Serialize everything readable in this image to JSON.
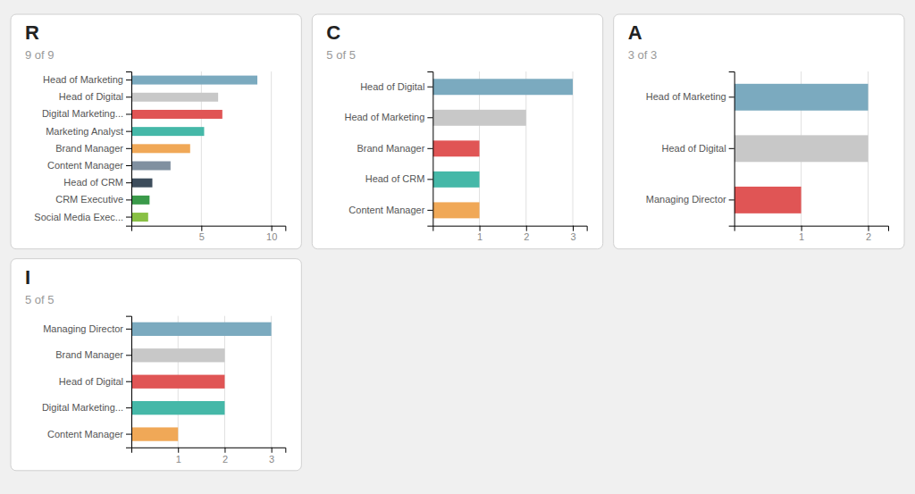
{
  "chart_data": [
    {
      "type": "bar",
      "orientation": "horizontal",
      "title": "R",
      "subtitle": "9 of 9",
      "categories": [
        "Head of Marketing",
        "Head of Digital",
        "Digital Marketing...",
        "Marketing Analyst",
        "Brand Manager",
        "Content Manager",
        "Head of CRM",
        "CRM Executive",
        "Social Media Exec..."
      ],
      "values": [
        9,
        6.2,
        6.5,
        5.2,
        4.2,
        2.8,
        1.5,
        1.3,
        1.2
      ],
      "colors": [
        "#7baabf",
        "#c8c8c8",
        "#e05555",
        "#45b8a8",
        "#f0a857",
        "#8090a0",
        "#3d4d5c",
        "#3a9a4a",
        "#88c044"
      ],
      "xlim": [
        0,
        11
      ],
      "xticks": [
        5,
        10
      ],
      "grid": true
    },
    {
      "type": "bar",
      "orientation": "horizontal",
      "title": "C",
      "subtitle": "5 of 5",
      "categories": [
        "Head of Digital",
        "Head of Marketing",
        "Brand Manager",
        "Head of CRM",
        "Content Manager"
      ],
      "values": [
        3.0,
        2.0,
        1.0,
        1.0,
        1.0
      ],
      "colors": [
        "#7baabf",
        "#c8c8c8",
        "#e05555",
        "#45b8a8",
        "#f0a857"
      ],
      "xlim": [
        0,
        3.3
      ],
      "xticks": [
        1,
        2,
        3
      ],
      "grid": true
    },
    {
      "type": "bar",
      "orientation": "horizontal",
      "title": "A",
      "subtitle": "3 of 3",
      "categories": [
        "Head of Marketing",
        "Head of Digital",
        "Managing Director"
      ],
      "values": [
        2.0,
        2.0,
        1.0
      ],
      "colors": [
        "#7baabf",
        "#c8c8c8",
        "#e05555"
      ],
      "xlim": [
        0,
        2.3
      ],
      "xticks": [
        1,
        2
      ],
      "grid": true
    },
    {
      "type": "bar",
      "orientation": "horizontal",
      "title": "I",
      "subtitle": "5 of 5",
      "categories": [
        "Managing Director",
        "Brand Manager",
        "Head of Digital",
        "Digital Marketing...",
        "Content Manager"
      ],
      "values": [
        3.0,
        2.0,
        2.0,
        2.0,
        1.0
      ],
      "colors": [
        "#7baabf",
        "#c8c8c8",
        "#e05555",
        "#45b8a8",
        "#f0a857"
      ],
      "xlim": [
        0,
        3.3
      ],
      "xticks": [
        1,
        2,
        3
      ],
      "grid": true
    }
  ]
}
